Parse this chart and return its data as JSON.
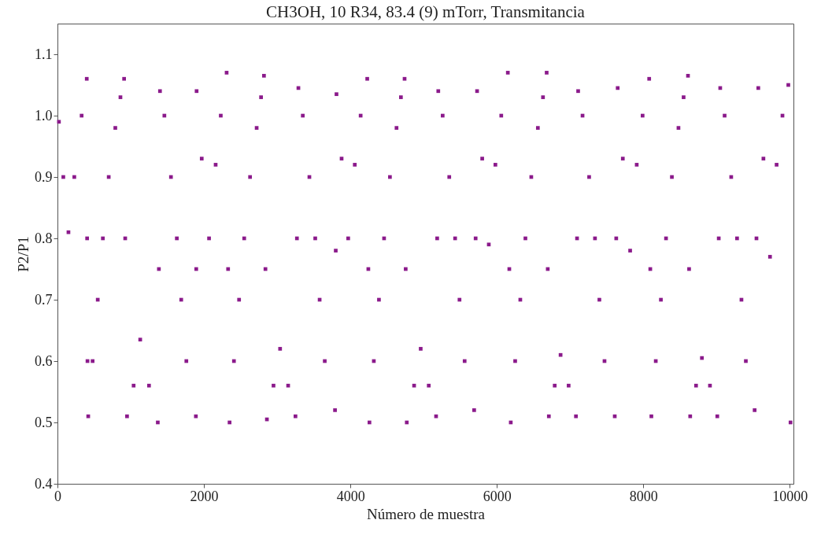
{
  "chart_data": {
    "type": "scatter",
    "title": "CH3OH,  10 R34,  83.4 (9) mTorr,  Transmitancia",
    "xlabel": "Número de muestra",
    "ylabel": "P2/P1",
    "xlim": [
      0,
      10050
    ],
    "ylim": [
      0.4,
      1.15
    ],
    "xticks": [
      0,
      2000,
      4000,
      6000,
      8000,
      10000
    ],
    "yticks": [
      0.4,
      0.5,
      0.6,
      0.7,
      0.8,
      0.9,
      {
        "value": 1,
        "label": "1.0"
      },
      1.1
    ],
    "grid": false,
    "legend": false,
    "marker": "square",
    "series": [
      {
        "color": "#8b1a8b",
        "x": [
          20,
          80,
          150,
          230,
          330,
          400,
          405,
          410,
          420,
          480,
          550,
          620,
          700,
          790,
          860,
          910,
          925,
          950,
          1040,
          1130,
          1250,
          1370,
          1385,
          1400,
          1460,
          1550,
          1630,
          1690,
          1760,
          1890,
          1895,
          1900,
          1970,
          2070,
          2160,
          2230,
          2310,
          2330,
          2350,
          2410,
          2480,
          2550,
          2630,
          2720,
          2780,
          2820,
          2840,
          2860,
          2950,
          3040,
          3150,
          3250,
          3270,
          3290,
          3350,
          3440,
          3520,
          3580,
          3650,
          3790,
          3800,
          3810,
          3880,
          3970,
          4060,
          4140,
          4230,
          4245,
          4260,
          4320,
          4390,
          4460,
          4540,
          4630,
          4690,
          4740,
          4755,
          4770,
          4870,
          4960,
          5070,
          5170,
          5185,
          5200,
          5260,
          5350,
          5430,
          5490,
          5560,
          5690,
          5710,
          5730,
          5800,
          5890,
          5980,
          6060,
          6150,
          6170,
          6190,
          6250,
          6320,
          6390,
          6470,
          6560,
          6630,
          6680,
          6695,
          6710,
          6790,
          6870,
          6980,
          7080,
          7095,
          7110,
          7170,
          7260,
          7340,
          7400,
          7470,
          7610,
          7630,
          7650,
          7720,
          7820,
          7910,
          7990,
          8080,
          8095,
          8110,
          8170,
          8240,
          8310,
          8390,
          8480,
          8550,
          8610,
          8625,
          8640,
          8720,
          8800,
          8910,
          9010,
          9030,
          9050,
          9110,
          9200,
          9280,
          9340,
          9400,
          9520,
          9545,
          9570,
          9640,
          9730,
          9820,
          9900,
          9980,
          10010
        ],
        "values": [
          0.99,
          0.9,
          0.81,
          0.9,
          1.0,
          1.06,
          0.8,
          0.6,
          0.51,
          0.6,
          0.7,
          0.8,
          0.9,
          0.98,
          1.03,
          1.06,
          0.8,
          0.51,
          0.56,
          0.635,
          0.56,
          0.5,
          0.75,
          1.04,
          1.0,
          0.9,
          0.8,
          0.7,
          0.6,
          0.51,
          0.75,
          1.04,
          0.93,
          0.8,
          0.92,
          1.0,
          1.07,
          0.75,
          0.5,
          0.6,
          0.7,
          0.8,
          0.9,
          0.98,
          1.03,
          1.065,
          0.75,
          0.505,
          0.56,
          0.62,
          0.56,
          0.51,
          0.8,
          1.045,
          1.0,
          0.9,
          0.8,
          0.7,
          0.6,
          0.52,
          0.78,
          1.035,
          0.93,
          0.8,
          0.92,
          1.0,
          1.06,
          0.75,
          0.5,
          0.6,
          0.7,
          0.8,
          0.9,
          0.98,
          1.03,
          1.06,
          0.75,
          0.5,
          0.56,
          0.62,
          0.56,
          0.51,
          0.8,
          1.04,
          1.0,
          0.9,
          0.8,
          0.7,
          0.6,
          0.52,
          0.8,
          1.04,
          0.93,
          0.79,
          0.92,
          1.0,
          1.07,
          0.75,
          0.5,
          0.6,
          0.7,
          0.8,
          0.9,
          0.98,
          1.03,
          1.07,
          0.75,
          0.51,
          0.56,
          0.61,
          0.56,
          0.51,
          0.8,
          1.04,
          1.0,
          0.9,
          0.8,
          0.7,
          0.6,
          0.51,
          0.8,
          1.045,
          0.93,
          0.78,
          0.92,
          1.0,
          1.06,
          0.75,
          0.51,
          0.6,
          0.7,
          0.8,
          0.9,
          0.98,
          1.03,
          1.065,
          0.75,
          0.51,
          0.56,
          0.605,
          0.56,
          0.51,
          0.8,
          1.045,
          1.0,
          0.9,
          0.8,
          0.7,
          0.6,
          0.52,
          0.8,
          1.045,
          0.93,
          0.77,
          0.92,
          1.0,
          1.05,
          0.5
        ]
      }
    ]
  }
}
